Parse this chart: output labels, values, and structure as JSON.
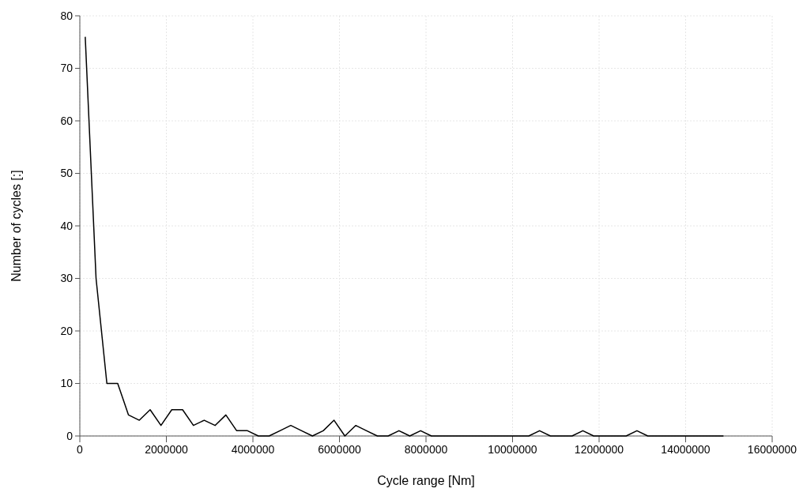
{
  "chart_data": {
    "type": "line",
    "xlabel": "Cycle range [Nm]",
    "ylabel": "Number of cycles  [:]",
    "x": [
      125000,
      375000,
      625000,
      875000,
      1125000,
      1375000,
      1625000,
      1875000,
      2125000,
      2375000,
      2625000,
      2875000,
      3125000,
      3375000,
      3625000,
      3875000,
      4125000,
      4375000,
      4625000,
      4875000,
      5125000,
      5375000,
      5625000,
      5875000,
      6125000,
      6375000,
      6625000,
      6875000,
      7125000,
      7375000,
      7625000,
      7875000,
      8125000,
      8375000,
      8625000,
      8875000,
      9125000,
      9375000,
      9625000,
      9875000,
      10125000,
      10375000,
      10625000,
      10875000,
      11125000,
      11375000,
      11625000,
      11875000,
      12125000,
      12375000,
      12625000,
      12875000,
      13125000,
      13375000,
      13625000,
      13875000,
      14125000,
      14375000,
      14625000,
      14875000
    ],
    "series": [
      {
        "color": "#000000",
        "values": [
          76,
          30,
          10,
          10,
          4,
          3,
          5,
          2,
          5,
          5,
          2,
          3,
          2,
          4,
          1,
          1,
          0,
          0,
          1,
          2,
          1,
          0,
          1,
          3,
          0,
          2,
          1,
          0,
          0,
          1,
          0,
          1,
          0,
          0,
          0,
          0,
          0,
          0,
          0,
          0,
          0,
          0,
          1,
          0,
          0,
          0,
          1,
          0,
          0,
          0,
          0,
          1,
          0,
          0,
          0,
          0,
          0,
          0,
          0,
          0
        ]
      }
    ],
    "xlim": [
      0,
      16000000
    ],
    "xticks": [
      0,
      2000000,
      4000000,
      6000000,
      8000000,
      10000000,
      12000000,
      14000000,
      16000000
    ],
    "ylim": [
      0,
      80
    ],
    "yticks": [
      0,
      10,
      20,
      30,
      40,
      50,
      60,
      70,
      80
    ],
    "grid": true,
    "marker": "none",
    "line_style": "solid"
  }
}
